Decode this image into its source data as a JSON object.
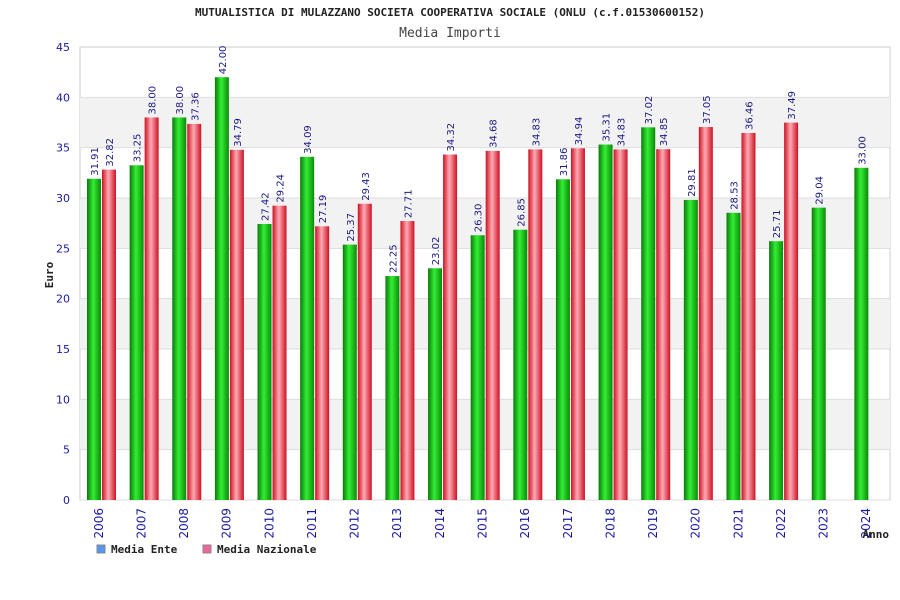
{
  "chart_data": {
    "type": "bar",
    "title": "MUTUALISTICA DI MULAZZANO SOCIETA COOPERATIVA SOCIALE (ONLU (c.f.01530600152)",
    "subtitle": "Media Importi",
    "xlabel": "Anno",
    "ylabel": "Euro",
    "ylim": [
      0,
      45
    ],
    "yticks": [
      "0",
      "5",
      "10",
      "15",
      "20",
      "25",
      "30",
      "35",
      "40",
      "45"
    ],
    "grid": "horizontal-bands",
    "legend_position": "bottom-left",
    "categories": [
      "2006",
      "2007",
      "2008",
      "2009",
      "2010",
      "2011",
      "2012",
      "2013",
      "2014",
      "2015",
      "2016",
      "2017",
      "2018",
      "2019",
      "2020",
      "2021",
      "2022",
      "2023",
      "2024"
    ],
    "series": [
      {
        "name": "Media Ente",
        "legend_color": "#5599ee",
        "bar_color": "#11aa11",
        "values": [
          31.91,
          33.25,
          38.0,
          42.0,
          27.42,
          34.09,
          25.37,
          22.25,
          23.02,
          26.3,
          26.85,
          31.86,
          35.31,
          37.02,
          29.81,
          28.53,
          25.71,
          29.04,
          33.0
        ],
        "labels": [
          "31.91",
          "33.25",
          "38.00",
          "42.00",
          "27.42",
          "34.09",
          "25.37",
          "22.25",
          "23.02",
          "26.30",
          "26.85",
          "31.86",
          "35.31",
          "37.02",
          "29.81",
          "28.53",
          "25.71",
          "29.04",
          "33.00"
        ]
      },
      {
        "name": "Media Nazionale",
        "legend_color": "#ee6699",
        "bar_color": "#ee2233",
        "values": [
          32.82,
          38.0,
          37.36,
          34.79,
          29.24,
          27.19,
          29.43,
          27.71,
          34.32,
          34.68,
          34.83,
          34.94,
          34.83,
          34.85,
          37.05,
          36.46,
          37.49,
          null,
          null
        ],
        "labels": [
          "32.82",
          "38.00",
          "37.36",
          "34.79",
          "29.24",
          "27.19",
          "29.43",
          "27.71",
          "34.32",
          "34.68",
          "34.83",
          "34.94",
          "34.83",
          "34.85",
          "37.05",
          "36.46",
          "37.49",
          "",
          ""
        ]
      }
    ]
  }
}
